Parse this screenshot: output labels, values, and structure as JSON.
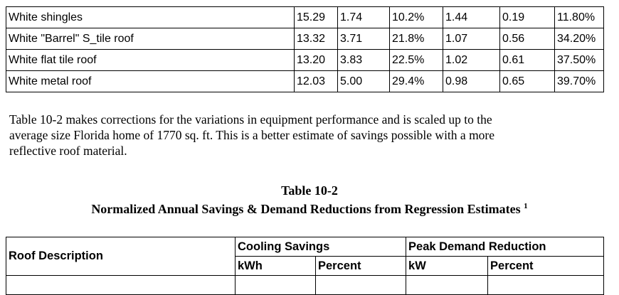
{
  "table1": {
    "rows": [
      [
        "White shingles",
        "15.29",
        "1.74",
        "10.2%",
        "1.44",
        "0.19",
        "11.80%"
      ],
      [
        "White \"Barrel\" S_tile roof",
        "13.32",
        "3.71",
        "21.8%",
        "1.07",
        "0.56",
        "34.20%"
      ],
      [
        "White flat tile roof",
        "13.20",
        "3.83",
        "22.5%",
        "1.02",
        "0.61",
        "37.50%"
      ],
      [
        "White metal roof",
        "12.03",
        "5.00",
        "29.4%",
        "0.98",
        "0.65",
        "39.70%"
      ]
    ]
  },
  "paragraph": {
    "lines": [
      "Table 10-2 makes corrections for the variations in equipment performance and is scaled up to the",
      "average size Florida home of 1770 sq. ft.  This is a better estimate of savings possible with a more",
      "reflective roof material."
    ]
  },
  "table2": {
    "label": "Table 10-2",
    "title": "Normalized Annual Savings & Demand Reductions from Regression Estimates",
    "footnote": "1",
    "headers": {
      "roof": "Roof Description",
      "cooling": "Cooling Savings",
      "peak": "Peak Demand Reduction",
      "sub": [
        "kWh",
        "Percent",
        "kW",
        "Percent"
      ]
    }
  }
}
